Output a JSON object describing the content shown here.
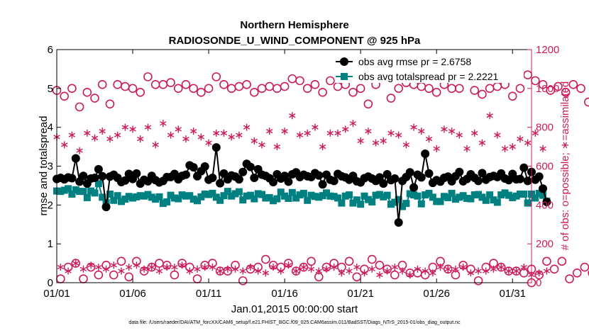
{
  "chart_data": {
    "type": "line",
    "title": "Northern Hemisphere",
    "subtitle": "RADIOSONDE_U_WIND_COMPONENT @ 925 hPa",
    "xlabel": "Jan.01,2015 00:00:00 start",
    "ylabel": "rmse and totalspread",
    "ylabel_right": "# of obs: o=possible; ∗=assimilated",
    "footer": "data file: /Users/raeder/DAI/ATM_forcXX/CAM6_setup/f.e21.FHIST_BGC.f09_025.CAM6assim.011/BadSST/Diags_NTrS_2015-01/obs_diag_output.nc",
    "xlim": [
      0,
      31.25
    ],
    "ylim": [
      0,
      6
    ],
    "ylim_right": [
      0,
      1200
    ],
    "x_ticks": [
      0,
      5,
      10,
      15,
      20,
      25,
      30
    ],
    "x_tick_labels": [
      "01/01",
      "01/06",
      "01/11",
      "01/16",
      "01/21",
      "01/26",
      "01/31"
    ],
    "y_ticks": [
      0,
      1,
      2,
      3,
      4,
      5,
      6
    ],
    "y_tick_labels": [
      "0",
      "1",
      "2",
      "3",
      "4",
      "5",
      "6"
    ],
    "y_ticks_right": [
      0,
      200,
      400,
      600,
      800,
      1000,
      1200
    ],
    "y_tick_labels_right": [
      "0",
      "200",
      "400",
      "600",
      "800",
      "1000",
      "1200"
    ],
    "colors": {
      "rmse": "#000000",
      "spread": "#008080",
      "obs": "#cc1a5c",
      "axis": "#000000"
    },
    "legend_position": "top-right",
    "series": [
      {
        "name": "obs avg rmse pr = 2.6758",
        "axis": "left",
        "values": [
          2.67,
          2.7,
          2.66,
          2.71,
          2.69,
          3.2,
          2.6,
          2.75,
          2.55,
          2.68,
          2.7,
          2.92,
          2.74,
          1.95,
          2.73,
          2.78,
          2.7,
          2.59,
          2.63,
          2.8,
          2.67,
          2.81,
          2.55,
          2.65,
          2.61,
          2.75,
          2.64,
          2.58,
          2.62,
          2.72,
          2.72,
          2.8,
          2.66,
          2.75,
          2.78,
          3.02,
          2.97,
          2.74,
          2.87,
          2.99,
          2.65,
          2.7,
          3.48,
          2.56,
          2.81,
          2.66,
          2.76,
          2.73,
          2.66,
          2.85,
          3.06,
          2.98,
          2.7,
          2.92,
          2.78,
          2.75,
          2.69,
          2.59,
          2.79,
          2.68,
          2.75,
          2.6,
          2.79,
          2.84,
          2.72,
          2.78,
          2.74,
          2.72,
          2.82,
          2.76,
          2.53,
          2.78,
          2.65,
          2.62,
          2.8,
          2.74,
          2.71,
          2.65,
          2.75,
          2.61,
          2.58,
          2.69,
          2.73,
          2.68,
          2.62,
          2.71,
          2.55,
          2.79,
          2.64,
          2.68,
          1.55,
          2.62,
          2.72,
          2.84,
          2.45,
          2.78,
          2.71,
          3.32,
          2.81,
          2.57,
          2.64,
          2.6,
          2.7,
          2.73,
          2.61,
          2.74,
          2.85,
          2.61,
          2.67,
          2.79,
          2.7,
          2.62,
          2.82,
          2.65,
          2.72,
          2.75,
          2.72,
          2.81,
          2.68,
          2.64,
          2.8,
          2.66,
          2.67,
          2.96,
          2.62,
          2.85,
          2.65,
          2.73,
          2.42,
          2.08
        ]
      },
      {
        "name": "obs avg totalspread pr = 2.2221",
        "axis": "left",
        "values": [
          2.36,
          2.35,
          2.38,
          2.42,
          2.28,
          2.39,
          2.35,
          2.35,
          2.19,
          2.36,
          2.31,
          2.55,
          2.2,
          2.06,
          2.28,
          2.12,
          2.24,
          2.09,
          2.15,
          2.22,
          2.18,
          2.21,
          2.24,
          2.23,
          2.27,
          2.2,
          2.15,
          2.21,
          2.04,
          2.08,
          2.25,
          2.18,
          2.16,
          2.26,
          2.23,
          2.24,
          2.15,
          2.11,
          2.21,
          2.28,
          2.27,
          2.3,
          2.2,
          2.12,
          2.24,
          2.35,
          2.23,
          2.29,
          2.34,
          2.13,
          2.23,
          2.25,
          2.16,
          2.29,
          2.27,
          2.18,
          2.19,
          2.11,
          2.16,
          2.33,
          2.23,
          2.17,
          2.32,
          2.18,
          2.26,
          2.3,
          2.12,
          2.25,
          2.22,
          2.2,
          2.24,
          2.31,
          2.23,
          2.22,
          2.18,
          2.05,
          2.23,
          2.26,
          2.05,
          2.13,
          2.02,
          2.23,
          2.14,
          2.08,
          2.25,
          2.27,
          2.21,
          2.25,
          2.02,
          2.07,
          2.14,
          1.96,
          2.04,
          2.29,
          2.26,
          2.23,
          2.03,
          2.26,
          2.3,
          2.2,
          2.09,
          2.09,
          2.22,
          2.19,
          2.3,
          2.15,
          2.2,
          2.24,
          2.17,
          2.16,
          2.26,
          2.27,
          2.2,
          2.12,
          2.26,
          2.13,
          2.07,
          2.26,
          2.31,
          2.25,
          2.19,
          2.23,
          2.28,
          2.28,
          2.05,
          2.28,
          2.18,
          2.3,
          2.25,
          2.1
        ]
      },
      {
        "name": "# obs possible",
        "axis": "right",
        "marker": "circle",
        "values": [
          990,
          20,
          960,
          80,
          1000,
          100,
          905,
          20,
          980,
          80,
          950,
          40,
          1020,
          90,
          920,
          40,
          1020,
          110,
          1010,
          30,
          1000,
          110,
          980,
          60,
          1060,
          80,
          1020,
          100,
          1020,
          90,
          1030,
          40,
          1000,
          100,
          1020,
          80,
          1000,
          20,
          980,
          90,
          1000,
          100,
          1060,
          60,
          1020,
          60,
          1000,
          90,
          1010,
          10,
          1020,
          70,
          980,
          80,
          1000,
          120,
          1010,
          90,
          1000,
          80,
          1010,
          100,
          1050,
          60,
          1040,
          80,
          1000,
          110,
          1020,
          30,
          980,
          80,
          1040,
          100,
          1010,
          80,
          1020,
          110,
          980,
          30,
          1000,
          70,
          920,
          120,
          1020,
          90,
          1060,
          70,
          950,
          40,
          1000,
          90,
          1030,
          50,
          1020,
          50,
          1010,
          40,
          1000,
          80,
          980,
          110,
          1020,
          70,
          1000,
          40,
          1000,
          90,
          1070,
          70,
          990,
          10,
          970,
          80,
          1000,
          100,
          1010,
          80,
          1020,
          60,
          960,
          60,
          1000,
          50,
          1070,
          70,
          1040,
          40,
          1020,
          110,
          990,
          70,
          1010,
          110,
          980,
          20,
          1020,
          50,
          1000,
          80,
          930,
          50
        ]
      },
      {
        "name": "# obs assimilated",
        "axis": "right",
        "marker": "asterisk",
        "values": [
          750,
          80,
          710,
          60,
          760,
          100,
          680,
          70,
          770,
          90,
          745,
          80,
          780,
          70,
          740,
          90,
          760,
          60,
          800,
          80,
          790,
          90,
          740,
          70,
          800,
          80,
          710,
          60,
          820,
          80,
          760,
          80,
          790,
          90,
          740,
          60,
          780,
          70,
          750,
          80,
          720,
          80,
          770,
          60,
          770,
          70,
          750,
          70,
          760,
          60,
          800,
          80,
          730,
          60,
          710,
          50,
          780,
          80,
          700,
          60,
          780,
          90,
          860,
          60,
          760,
          80,
          770,
          70,
          800,
          60,
          700,
          70,
          770,
          80,
          770,
          50,
          790,
          60,
          820,
          80,
          730,
          50,
          780,
          70,
          720,
          40,
          730,
          60,
          770,
          80,
          760,
          60,
          710,
          40,
          800,
          70,
          780,
          60,
          740,
          50,
          690,
          80,
          790,
          70,
          780,
          70,
          760,
          80,
          690,
          50,
          770,
          60,
          720,
          60,
          860,
          70,
          760,
          80,
          690,
          60,
          700,
          60,
          740,
          80,
          720,
          40,
          770,
          50,
          690,
          60
        ]
      }
    ]
  }
}
